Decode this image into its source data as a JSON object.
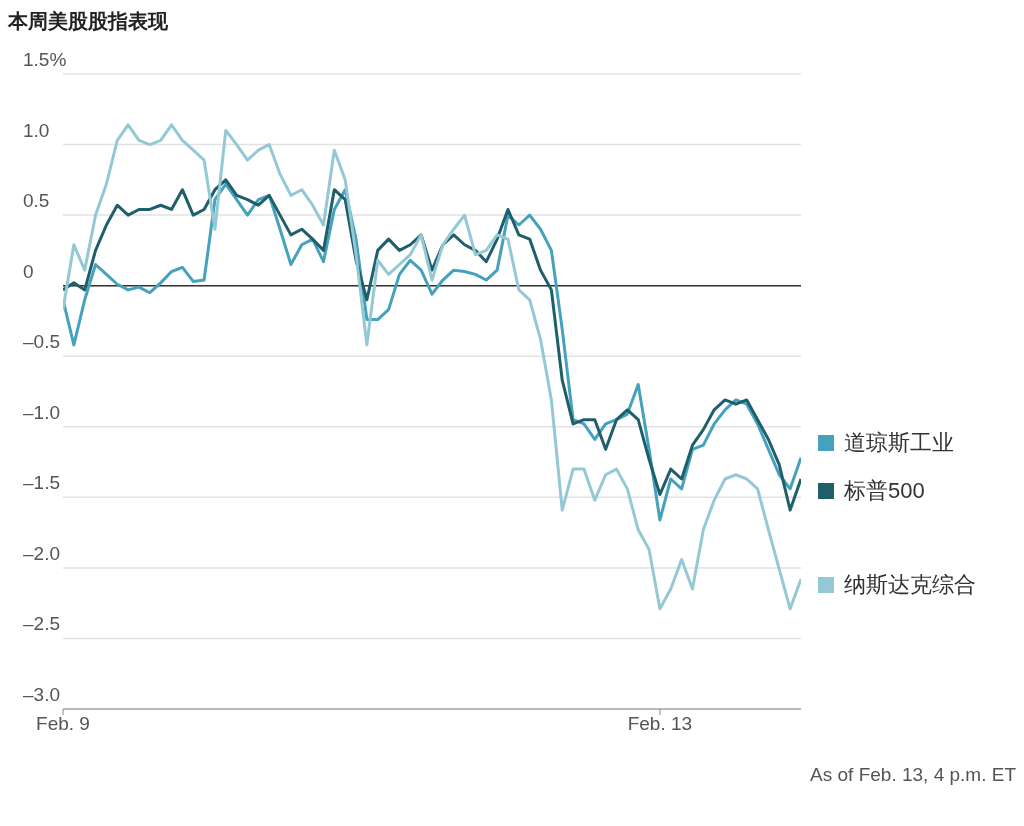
{
  "chart_data": {
    "type": "line",
    "title": "本周美股股指表现",
    "categories": [
      "Feb. 9",
      null,
      null,
      null,
      null,
      null,
      null,
      null,
      null,
      null,
      null,
      null,
      null,
      null,
      null,
      null,
      null,
      null,
      null,
      null,
      null,
      null,
      null,
      null,
      null,
      null,
      null,
      null,
      null,
      null,
      null,
      null,
      null,
      null,
      null,
      null,
      null,
      null,
      null,
      null,
      null,
      null,
      null,
      null,
      null,
      null,
      null,
      null,
      null,
      null,
      null,
      null,
      null,
      null,
      null,
      "Feb. 13",
      null,
      null,
      null,
      null,
      null,
      null,
      null,
      null,
      null,
      null,
      null,
      null,
      null
    ],
    "series": [
      {
        "name": "道琼斯工业",
        "color": "#45a2bc",
        "values": [
          -0.1,
          -0.42,
          -0.1,
          0.15,
          0.08,
          0.01,
          -0.03,
          -0.01,
          -0.05,
          0.02,
          0.1,
          0.13,
          0.03,
          0.04,
          0.61,
          0.72,
          0.61,
          0.5,
          0.61,
          0.64,
          0.4,
          0.15,
          0.29,
          0.33,
          0.17,
          0.54,
          0.68,
          0.33,
          -0.24,
          -0.24,
          -0.17,
          0.08,
          0.18,
          0.11,
          -0.06,
          0.04,
          0.11,
          0.1,
          0.08,
          0.04,
          0.11,
          0.5,
          0.43,
          0.5,
          0.4,
          0.25,
          -0.31,
          -0.95,
          -0.98,
          -1.09,
          -0.98,
          -0.95,
          -0.91,
          -0.7,
          -1.16,
          -1.66,
          -1.37,
          -1.44,
          -1.16,
          -1.13,
          -0.98,
          -0.88,
          -0.81,
          -0.84,
          -0.98,
          -1.16,
          -1.34,
          -1.44,
          -1.22
        ]
      },
      {
        "name": "标普500",
        "color": "#1f5e6b",
        "values": [
          -0.03,
          0.02,
          -0.03,
          0.25,
          0.43,
          0.57,
          0.5,
          0.54,
          0.54,
          0.57,
          0.54,
          0.68,
          0.5,
          0.54,
          0.68,
          0.75,
          0.64,
          0.61,
          0.57,
          0.64,
          0.5,
          0.36,
          0.4,
          0.33,
          0.25,
          0.68,
          0.61,
          0.18,
          -0.1,
          0.25,
          0.33,
          0.25,
          0.29,
          0.36,
          0.11,
          0.29,
          0.36,
          0.29,
          0.25,
          0.17,
          0.33,
          0.54,
          0.36,
          0.33,
          0.11,
          -0.03,
          -0.67,
          -0.98,
          -0.95,
          -0.95,
          -1.16,
          -0.95,
          -0.88,
          -0.95,
          -1.23,
          -1.48,
          -1.3,
          -1.37,
          -1.13,
          -1.02,
          -0.88,
          -0.81,
          -0.84,
          -0.81,
          -0.95,
          -1.09,
          -1.27,
          -1.59,
          -1.37
        ]
      },
      {
        "name": "纳斯达克综合",
        "color": "#94c8d5",
        "values": [
          -0.17,
          0.29,
          0.11,
          0.5,
          0.72,
          1.03,
          1.14,
          1.03,
          1.0,
          1.03,
          1.14,
          1.03,
          0.96,
          0.89,
          0.4,
          1.1,
          1.0,
          0.89,
          0.96,
          1.0,
          0.79,
          0.64,
          0.68,
          0.57,
          0.43,
          0.96,
          0.75,
          0.22,
          -0.42,
          0.18,
          0.08,
          0.15,
          0.22,
          0.36,
          0.04,
          0.29,
          0.4,
          0.5,
          0.22,
          0.25,
          0.36,
          0.33,
          -0.03,
          -0.1,
          -0.38,
          -0.81,
          -1.59,
          -1.3,
          -1.3,
          -1.52,
          -1.34,
          -1.3,
          -1.44,
          -1.73,
          -1.87,
          -2.29,
          -2.15,
          -1.94,
          -2.15,
          -1.73,
          -1.52,
          -1.37,
          -1.34,
          -1.37,
          -1.44,
          -1.73,
          -2.01,
          -2.29,
          -2.08
        ]
      }
    ],
    "ylim": [
      -3.0,
      1.5
    ],
    "yticks": [
      {
        "value": -3.0,
        "label": "–3.0"
      },
      {
        "value": -2.5,
        "label": "–2.5"
      },
      {
        "value": -2.0,
        "label": "–2.0"
      },
      {
        "value": -1.5,
        "label": "–1.5"
      },
      {
        "value": -1.0,
        "label": "–1.0"
      },
      {
        "value": -0.5,
        "label": "–0.5"
      },
      0,
      {
        "value": 0.5,
        "label": "0.5"
      },
      {
        "value": 1.0,
        "label": "1.0"
      },
      {
        "value": 1.5,
        "label": "1.5%"
      }
    ],
    "grid": "y",
    "ref_lines": [
      {
        "axis": "y",
        "value": 0,
        "color": "#333333"
      }
    ],
    "legend": "right",
    "marker": "none",
    "line_style": "solid",
    "annotations": [
      "As of Feb. 13, 4 p.m. ET"
    ]
  }
}
